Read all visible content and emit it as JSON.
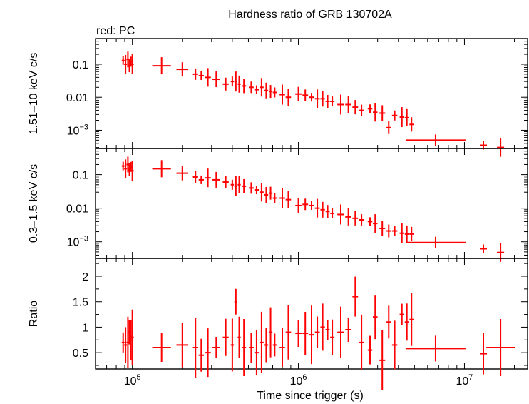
{
  "title": "Hardness ratio of GRB 130702A",
  "subtitle": "red: PC",
  "colors": {
    "data": "#ff0000",
    "axis": "#000000"
  },
  "xlabel": "Time since trigger (s)",
  "chart_data": {
    "type": "scatter",
    "x_scale": "log",
    "x_range": [
      60000,
      24000000
    ],
    "x_ticks": [
      {
        "value": 100000,
        "base": "10",
        "exp": "5"
      },
      {
        "value": 1000000,
        "base": "10",
        "exp": "6"
      },
      {
        "value": 10000000,
        "base": "10",
        "exp": "7"
      }
    ],
    "panels": [
      {
        "ylabel": "1.51–10 keV c/s",
        "y_scale": "log",
        "y_range": [
          0.00028,
          0.6
        ],
        "y_ticks": [
          {
            "value": 0.1,
            "label": "0.1"
          },
          {
            "value": 0.01,
            "label": "0.01"
          },
          {
            "value": 0.001,
            "base": "10",
            "exp": "−3"
          }
        ],
        "series": [
          {
            "points": [
              [
                88000,
                0.13
              ],
              [
                91000,
                0.1
              ],
              [
                94000,
                0.14
              ],
              [
                96000,
                0.09
              ],
              [
                98000,
                0.12
              ],
              [
                100000,
                0.1
              ],
              [
                150000,
                0.09
              ],
              [
                200000,
                0.07
              ],
              [
                240000,
                0.05
              ],
              [
                260000,
                0.045
              ],
              [
                285000,
                0.04
              ],
              [
                320000,
                0.035
              ],
              [
                365000,
                0.025
              ],
              [
                400000,
                0.03
              ],
              [
                420000,
                0.03
              ],
              [
                440000,
                0.025
              ],
              [
                470000,
                0.022
              ],
              [
                520000,
                0.02
              ],
              [
                560000,
                0.017
              ],
              [
                600000,
                0.02
              ],
              [
                640000,
                0.016
              ],
              [
                680000,
                0.015
              ],
              [
                720000,
                0.014
              ],
              [
                800000,
                0.012
              ],
              [
                870000,
                0.01
              ],
              [
                1000000,
                0.0125
              ],
              [
                1100000,
                0.0115
              ],
              [
                1200000,
                0.01
              ],
              [
                1300000,
                0.009
              ],
              [
                1400000,
                0.009
              ],
              [
                1500000,
                0.0075
              ],
              [
                1600000,
                0.0075
              ],
              [
                1800000,
                0.006
              ],
              [
                2000000,
                0.006
              ],
              [
                2200000,
                0.005
              ],
              [
                2400000,
                0.004
              ],
              [
                2700000,
                0.0045
              ],
              [
                2900000,
                0.0035
              ],
              [
                3200000,
                0.0033
              ],
              [
                3500000,
                0.0012
              ],
              [
                3800000,
                0.0028
              ],
              [
                4200000,
                0.0025
              ],
              [
                4500000,
                0.0024
              ],
              [
                4800000,
                0.0015
              ],
              [
                6700000,
                0.0005
              ],
              [
                13000000,
                0.00035
              ],
              [
                16500000,
                0.0003
              ]
            ]
          }
        ]
      },
      {
        "ylabel": "0.3–1.5 keV c/s",
        "y_scale": "log",
        "y_range": [
          0.00032,
          0.6
        ],
        "y_ticks": [
          {
            "value": 0.1,
            "label": "0.1"
          },
          {
            "value": 0.01,
            "label": "0.01"
          },
          {
            "value": 0.001,
            "base": "10",
            "exp": "−3"
          }
        ],
        "series": [
          {
            "points": [
              [
                88000,
                0.18
              ],
              [
                91000,
                0.15
              ],
              [
                94000,
                0.2
              ],
              [
                96000,
                0.14
              ],
              [
                98000,
                0.17
              ],
              [
                100000,
                0.13
              ],
              [
                150000,
                0.15
              ],
              [
                200000,
                0.11
              ],
              [
                240000,
                0.085
              ],
              [
                260000,
                0.07
              ],
              [
                285000,
                0.08
              ],
              [
                320000,
                0.07
              ],
              [
                365000,
                0.06
              ],
              [
                400000,
                0.05
              ],
              [
                420000,
                0.045
              ],
              [
                440000,
                0.05
              ],
              [
                470000,
                0.045
              ],
              [
                520000,
                0.04
              ],
              [
                560000,
                0.035
              ],
              [
                600000,
                0.03
              ],
              [
                640000,
                0.025
              ],
              [
                680000,
                0.028
              ],
              [
                720000,
                0.02
              ],
              [
                800000,
                0.02
              ],
              [
                870000,
                0.018
              ],
              [
                1000000,
                0.012
              ],
              [
                1100000,
                0.013
              ],
              [
                1200000,
                0.012
              ],
              [
                1300000,
                0.01
              ],
              [
                1400000,
                0.009
              ],
              [
                1500000,
                0.008
              ],
              [
                1600000,
                0.007
              ],
              [
                1800000,
                0.0065
              ],
              [
                2000000,
                0.0055
              ],
              [
                2200000,
                0.005
              ],
              [
                2400000,
                0.0045
              ],
              [
                2700000,
                0.004
              ],
              [
                2900000,
                0.0035
              ],
              [
                3200000,
                0.0025
              ],
              [
                3500000,
                0.0021
              ],
              [
                3800000,
                0.0021
              ],
              [
                4200000,
                0.0018
              ],
              [
                4500000,
                0.0017
              ],
              [
                4800000,
                0.0017
              ],
              [
                6700000,
                0.00095
              ],
              [
                13000000,
                0.00062
              ],
              [
                16500000,
                0.00048
              ]
            ]
          }
        ]
      },
      {
        "ylabel": "Ratio",
        "y_scale": "linear",
        "y_range": [
          0.18,
          2.35
        ],
        "y_ticks": [
          {
            "value": 0.5,
            "label": "0.5"
          },
          {
            "value": 1,
            "label": "1"
          },
          {
            "value": 1.5,
            "label": "1.5"
          },
          {
            "value": 2,
            "label": "2"
          }
        ],
        "series": [
          {
            "points": [
              [
                88000,
                0.7
              ],
              [
                91000,
                0.65
              ],
              [
                94000,
                0.7
              ],
              [
                96000,
                0.9
              ],
              [
                98000,
                0.75
              ],
              [
                100000,
                0.8
              ],
              [
                150000,
                0.6
              ],
              [
                200000,
                0.65
              ],
              [
                240000,
                0.6
              ],
              [
                260000,
                0.45
              ],
              [
                285000,
                0.5
              ],
              [
                320000,
                0.6
              ],
              [
                365000,
                0.8
              ],
              [
                400000,
                0.65
              ],
              [
                420000,
                1.5
              ],
              [
                440000,
                0.8
              ],
              [
                470000,
                0.6
              ],
              [
                520000,
                0.6
              ],
              [
                560000,
                0.5
              ],
              [
                600000,
                0.7
              ],
              [
                640000,
                0.65
              ],
              [
                680000,
                0.9
              ],
              [
                720000,
                0.65
              ],
              [
                800000,
                0.6
              ],
              [
                870000,
                0.9
              ],
              [
                1000000,
                0.88
              ],
              [
                1100000,
                0.88
              ],
              [
                1200000,
                0.85
              ],
              [
                1300000,
                0.9
              ],
              [
                1400000,
                1.0
              ],
              [
                1500000,
                0.95
              ],
              [
                1600000,
                0.8
              ],
              [
                1800000,
                0.9
              ],
              [
                2000000,
                0.95
              ],
              [
                2200000,
                1.6
              ],
              [
                2400000,
                0.7
              ],
              [
                2700000,
                0.55
              ],
              [
                2900000,
                1.2
              ],
              [
                3200000,
                0.35
              ],
              [
                3500000,
                1.1
              ],
              [
                3800000,
                0.65
              ],
              [
                4200000,
                1.25
              ],
              [
                4500000,
                1.1
              ],
              [
                4800000,
                1.15
              ],
              [
                6700000,
                0.58
              ],
              [
                13000000,
                0.48
              ],
              [
                16500000,
                0.6
              ]
            ]
          }
        ]
      }
    ]
  }
}
